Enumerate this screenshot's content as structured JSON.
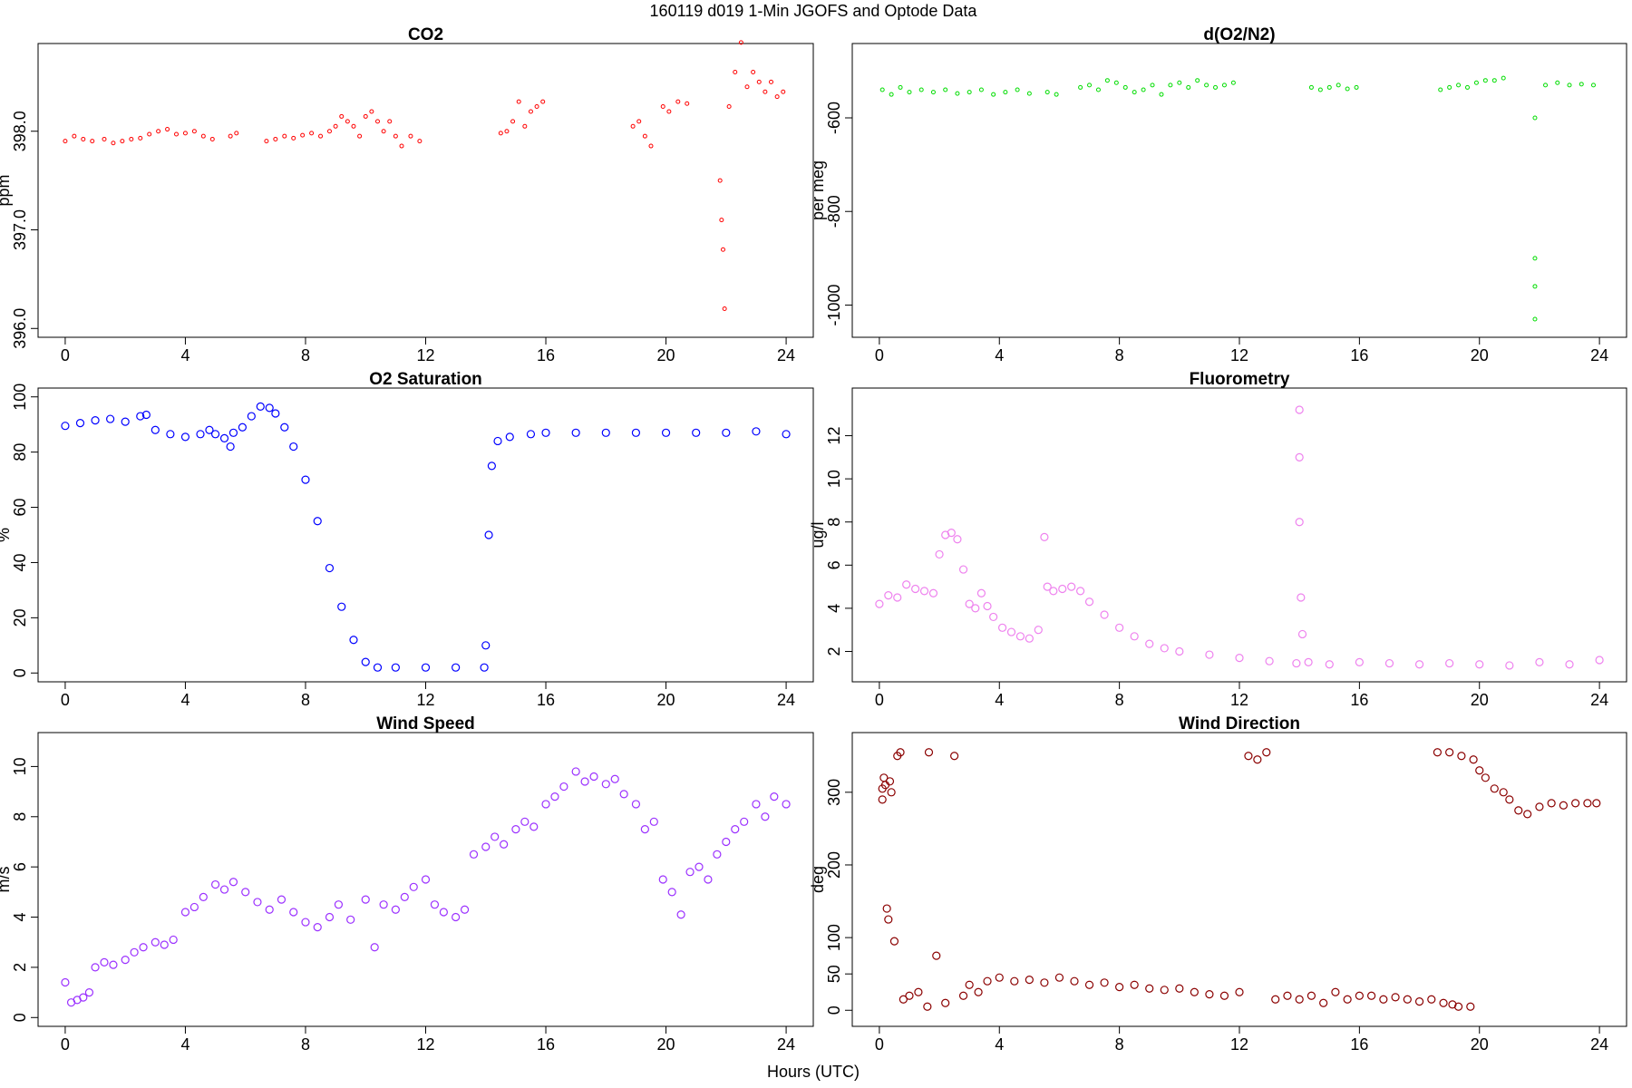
{
  "figure": {
    "title": "160119   d019   1-Min  JGOFS and Optode Data",
    "xlabel": "Hours (UTC)"
  },
  "chart_data": [
    {
      "type": "scatter",
      "title": "CO2",
      "xlabel": "",
      "ylabel": "ppm",
      "xlim": [
        0,
        24
      ],
      "ylim": [
        396.0,
        398.8
      ],
      "xticks": [
        0,
        4,
        8,
        12,
        16,
        20,
        24
      ],
      "yticks": [
        396.0,
        397.0,
        398.0
      ],
      "ytick_labels": [
        "396.0",
        "397.0",
        "398.0"
      ],
      "color": "#ff0000",
      "marker_size": 2,
      "x": [
        0.0,
        0.3,
        0.6,
        0.9,
        1.3,
        1.6,
        1.9,
        2.2,
        2.5,
        2.8,
        3.1,
        3.4,
        3.7,
        4.0,
        4.3,
        4.6,
        4.9,
        5.5,
        5.7,
        6.7,
        7.0,
        7.3,
        7.6,
        7.9,
        8.2,
        8.5,
        8.8,
        9.0,
        9.2,
        9.4,
        9.6,
        9.8,
        10.0,
        10.2,
        10.4,
        10.6,
        10.8,
        11.0,
        11.2,
        11.5,
        11.8,
        14.5,
        14.7,
        14.9,
        15.1,
        15.3,
        15.5,
        15.7,
        15.9,
        18.9,
        19.1,
        19.3,
        19.5,
        19.9,
        20.1,
        20.4,
        20.7,
        21.8,
        21.85,
        21.9,
        21.95,
        22.1,
        22.3,
        22.5,
        22.7,
        22.9,
        23.1,
        23.3,
        23.5,
        23.7,
        23.9
      ],
      "y": [
        397.9,
        397.95,
        397.92,
        397.9,
        397.92,
        397.88,
        397.9,
        397.92,
        397.93,
        397.97,
        398.0,
        398.02,
        397.97,
        397.98,
        398.0,
        397.95,
        397.92,
        397.95,
        397.98,
        397.9,
        397.92,
        397.95,
        397.93,
        397.96,
        397.98,
        397.95,
        398.0,
        398.05,
        398.15,
        398.1,
        398.05,
        397.95,
        398.15,
        398.2,
        398.1,
        398.0,
        398.1,
        397.95,
        397.85,
        397.95,
        397.9,
        397.98,
        398.0,
        398.1,
        398.3,
        398.05,
        398.2,
        398.25,
        398.3,
        398.05,
        398.1,
        397.95,
        397.85,
        398.25,
        398.2,
        398.3,
        398.28,
        397.5,
        397.1,
        396.8,
        396.2,
        398.25,
        398.6,
        398.9,
        398.45,
        398.6,
        398.5,
        398.4,
        398.5,
        398.35,
        398.4
      ]
    },
    {
      "type": "scatter",
      "title": "d(O2/N2)",
      "xlabel": "",
      "ylabel": "per meg",
      "xlim": [
        0,
        24
      ],
      "ylim": [
        -1050,
        -460
      ],
      "xticks": [
        0,
        4,
        8,
        12,
        16,
        20,
        24
      ],
      "yticks": [
        -1000,
        -800,
        -600
      ],
      "ytick_labels": [
        "-1000",
        "-800",
        "-600"
      ],
      "color": "#00dd00",
      "marker_size": 2,
      "x": [
        0.1,
        0.4,
        0.7,
        1.0,
        1.4,
        1.8,
        2.2,
        2.6,
        3.0,
        3.4,
        3.8,
        4.2,
        4.6,
        5.0,
        5.6,
        5.9,
        6.7,
        7.0,
        7.3,
        7.6,
        7.9,
        8.2,
        8.5,
        8.8,
        9.1,
        9.4,
        9.7,
        10.0,
        10.3,
        10.6,
        10.9,
        11.2,
        11.5,
        11.8,
        14.4,
        14.7,
        15.0,
        15.3,
        15.6,
        15.9,
        18.7,
        19.0,
        19.3,
        19.6,
        19.9,
        20.2,
        20.5,
        20.8,
        21.85,
        21.85,
        21.85,
        21.85,
        22.2,
        22.6,
        23.0,
        23.4,
        23.8
      ],
      "y": [
        -540,
        -550,
        -535,
        -545,
        -540,
        -545,
        -540,
        -548,
        -545,
        -540,
        -550,
        -545,
        -540,
        -548,
        -545,
        -550,
        -535,
        -530,
        -540,
        -520,
        -525,
        -535,
        -545,
        -540,
        -530,
        -550,
        -530,
        -525,
        -535,
        -520,
        -530,
        -535,
        -530,
        -525,
        -535,
        -540,
        -535,
        -530,
        -538,
        -535,
        -540,
        -535,
        -530,
        -535,
        -525,
        -520,
        -520,
        -515,
        -600,
        -900,
        -960,
        -1030,
        -530,
        -525,
        -530,
        -528,
        -530
      ]
    },
    {
      "type": "scatter",
      "title": "O2 Saturation",
      "xlabel": "",
      "ylabel": "%",
      "xlim": [
        0,
        24
      ],
      "ylim": [
        0,
        100
      ],
      "xticks": [
        0,
        4,
        8,
        12,
        16,
        20,
        24
      ],
      "yticks": [
        0,
        20,
        40,
        60,
        80,
        100
      ],
      "ytick_labels": [
        "0",
        "20",
        "40",
        "60",
        "80",
        "100"
      ],
      "color": "#0000ff",
      "marker_size": 4,
      "x": [
        0.0,
        0.5,
        1.0,
        1.5,
        2.0,
        2.5,
        2.7,
        3.0,
        3.5,
        4.0,
        4.5,
        4.8,
        5.0,
        5.3,
        5.5,
        5.6,
        5.9,
        6.2,
        6.5,
        6.8,
        7.0,
        7.3,
        7.6,
        8.0,
        8.4,
        8.8,
        9.2,
        9.6,
        10.0,
        10.4,
        11.0,
        12.0,
        13.0,
        13.95,
        14.0,
        14.1,
        14.2,
        14.4,
        14.8,
        15.5,
        16.0,
        17.0,
        18.0,
        19.0,
        20.0,
        21.0,
        22.0,
        23.0,
        24.0
      ],
      "y": [
        89.5,
        90.5,
        91.5,
        92,
        91,
        93,
        93.5,
        88,
        86.5,
        85.5,
        86.5,
        88,
        86.5,
        85,
        82,
        87,
        89,
        93,
        96.5,
        96,
        94,
        89,
        82,
        70,
        55,
        38,
        24,
        12,
        4,
        2,
        2,
        2,
        2,
        2,
        10,
        50,
        75,
        84,
        85.5,
        86.5,
        87,
        87,
        87,
        87,
        87,
        87,
        87,
        87.5,
        86.5
      ]
    },
    {
      "type": "scatter",
      "title": "Fluorometry",
      "xlabel": "",
      "ylabel": "ug/l",
      "xlim": [
        0,
        24
      ],
      "ylim": [
        1.0,
        13.8
      ],
      "xticks": [
        0,
        4,
        8,
        12,
        16,
        20,
        24
      ],
      "yticks": [
        2,
        4,
        6,
        8,
        10,
        12
      ],
      "ytick_labels": [
        "2",
        "4",
        "6",
        "8",
        "10",
        "12"
      ],
      "color": "#ee82ee",
      "marker_size": 4,
      "x": [
        0.0,
        0.3,
        0.6,
        0.9,
        1.2,
        1.5,
        1.8,
        2.0,
        2.2,
        2.4,
        2.6,
        2.8,
        3.0,
        3.2,
        3.4,
        3.6,
        3.8,
        4.1,
        4.4,
        4.7,
        5.0,
        5.3,
        5.5,
        5.6,
        5.8,
        6.1,
        6.4,
        6.7,
        7.0,
        7.5,
        8.0,
        8.5,
        9.0,
        9.5,
        10.0,
        11.0,
        12.0,
        13.0,
        13.9,
        14.0,
        14.0,
        14.0,
        14.05,
        14.1,
        14.3,
        15.0,
        16.0,
        17.0,
        18.0,
        19.0,
        20.0,
        21.0,
        22.0,
        23.0,
        24.0
      ],
      "y": [
        4.2,
        4.6,
        4.5,
        5.1,
        4.9,
        4.8,
        4.7,
        6.5,
        7.4,
        7.5,
        7.2,
        5.8,
        4.2,
        4.0,
        4.7,
        4.1,
        3.6,
        3.1,
        2.9,
        2.7,
        2.6,
        3.0,
        7.3,
        5.0,
        4.8,
        4.9,
        5.0,
        4.8,
        4.3,
        3.7,
        3.1,
        2.7,
        2.35,
        2.15,
        2.0,
        1.85,
        1.7,
        1.55,
        1.45,
        13.2,
        11.0,
        8.0,
        4.5,
        2.8,
        1.5,
        1.4,
        1.5,
        1.45,
        1.4,
        1.45,
        1.4,
        1.35,
        1.5,
        1.4,
        1.6
      ]
    },
    {
      "type": "scatter",
      "title": "Wind Speed",
      "xlabel": "",
      "ylabel": "m/s",
      "xlim": [
        0,
        24
      ],
      "ylim": [
        0,
        11
      ],
      "xticks": [
        0,
        4,
        8,
        12,
        16,
        20,
        24
      ],
      "yticks": [
        0,
        2,
        4,
        6,
        8,
        10
      ],
      "ytick_labels": [
        "0",
        "2",
        "4",
        "6",
        "8",
        "10"
      ],
      "color": "#9b30ff",
      "marker_size": 4,
      "x": [
        0.0,
        0.2,
        0.4,
        0.6,
        0.8,
        1.0,
        1.3,
        1.6,
        2.0,
        2.3,
        2.6,
        3.0,
        3.3,
        3.6,
        4.0,
        4.3,
        4.6,
        5.0,
        5.3,
        5.6,
        6.0,
        6.4,
        6.8,
        7.2,
        7.6,
        8.0,
        8.4,
        8.8,
        9.1,
        9.5,
        10.0,
        10.3,
        10.6,
        11.0,
        11.3,
        11.6,
        12.0,
        12.3,
        12.6,
        13.0,
        13.3,
        13.6,
        14.0,
        14.3,
        14.6,
        15.0,
        15.3,
        15.6,
        16.0,
        16.3,
        16.6,
        17.0,
        17.3,
        17.6,
        18.0,
        18.3,
        18.6,
        19.0,
        19.3,
        19.6,
        19.9,
        20.2,
        20.5,
        20.8,
        21.1,
        21.4,
        21.7,
        22.0,
        22.3,
        22.6,
        23.0,
        23.3,
        23.6,
        24.0
      ],
      "y": [
        1.4,
        0.6,
        0.7,
        0.8,
        1.0,
        2.0,
        2.2,
        2.1,
        2.3,
        2.6,
        2.8,
        3.0,
        2.9,
        3.1,
        4.2,
        4.4,
        4.8,
        5.3,
        5.1,
        5.4,
        5.0,
        4.6,
        4.3,
        4.7,
        4.2,
        3.8,
        3.6,
        4.0,
        4.5,
        3.9,
        4.7,
        2.8,
        4.5,
        4.3,
        4.8,
        5.2,
        5.5,
        4.5,
        4.2,
        4.0,
        4.3,
        6.5,
        6.8,
        7.2,
        6.9,
        7.5,
        7.8,
        7.6,
        8.5,
        8.8,
        9.2,
        9.8,
        9.4,
        9.6,
        9.3,
        9.5,
        8.9,
        8.5,
        7.5,
        7.8,
        5.5,
        5.0,
        4.1,
        5.8,
        6.0,
        5.5,
        6.5,
        7.0,
        7.5,
        7.8,
        8.5,
        8.0,
        8.8,
        8.5
      ]
    },
    {
      "type": "scatter",
      "title": "Wind Direction",
      "xlabel": "",
      "ylabel": "deg",
      "xlim": [
        0,
        24
      ],
      "ylim": [
        -10,
        370
      ],
      "xticks": [
        0,
        4,
        8,
        12,
        16,
        20,
        24
      ],
      "yticks": [
        0,
        50,
        100,
        200,
        300
      ],
      "ytick_labels": [
        "0",
        "50",
        "100",
        "200",
        "300"
      ],
      "color": "#8b0000",
      "marker_size": 4,
      "x": [
        0.1,
        0.1,
        0.15,
        0.2,
        0.25,
        0.3,
        0.35,
        0.4,
        0.5,
        0.6,
        0.7,
        0.8,
        1.0,
        1.3,
        1.6,
        1.65,
        1.9,
        2.2,
        2.5,
        2.8,
        3.0,
        3.3,
        3.6,
        4.0,
        4.5,
        5.0,
        5.5,
        6.0,
        6.5,
        7.0,
        7.5,
        8.0,
        8.5,
        9.0,
        9.5,
        10.0,
        10.5,
        11.0,
        11.5,
        12.0,
        12.3,
        12.6,
        12.9,
        13.2,
        13.6,
        14.0,
        14.4,
        14.8,
        15.2,
        15.6,
        16.0,
        16.4,
        16.8,
        17.2,
        17.6,
        18.0,
        18.4,
        18.8,
        19.1,
        19.3,
        19.7,
        18.6,
        19.0,
        19.4,
        19.8,
        20.0,
        20.2,
        20.5,
        20.8,
        21.0,
        21.3,
        21.6,
        22.0,
        22.4,
        22.8,
        23.2,
        23.6,
        23.9
      ],
      "y": [
        290,
        305,
        320,
        310,
        140,
        125,
        315,
        300,
        95,
        350,
        355,
        15,
        20,
        25,
        5,
        355,
        75,
        10,
        350,
        20,
        35,
        25,
        40,
        45,
        40,
        42,
        38,
        45,
        40,
        35,
        38,
        32,
        35,
        30,
        28,
        30,
        25,
        22,
        20,
        25,
        350,
        345,
        355,
        15,
        20,
        15,
        20,
        10,
        25,
        15,
        20,
        20,
        15,
        18,
        15,
        12,
        15,
        10,
        8,
        5,
        5,
        355,
        355,
        350,
        345,
        330,
        320,
        305,
        300,
        290,
        275,
        270,
        280,
        285,
        282,
        285,
        285,
        285
      ],
      "wrap_points": true
    }
  ]
}
